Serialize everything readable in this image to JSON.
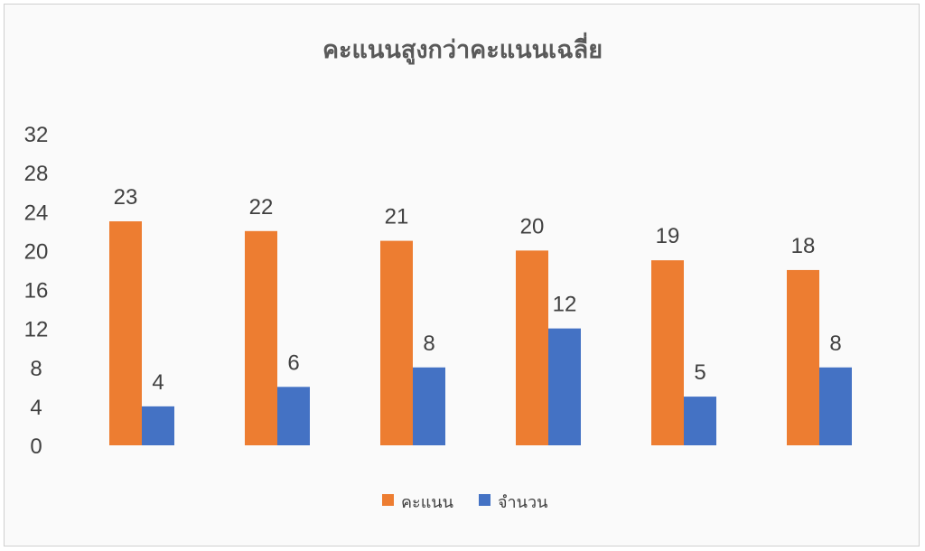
{
  "chart_data": {
    "type": "bar",
    "title": "คะแนนสูงกว่าคะแนนเฉลี่ย",
    "categories": [
      "",
      "",
      "",
      "",
      "",
      ""
    ],
    "series": [
      {
        "name": "คะแนน",
        "values": [
          23,
          22,
          21,
          20,
          19,
          18
        ],
        "color": "#ED7D31"
      },
      {
        "name": "จำนวน",
        "values": [
          4,
          6,
          8,
          12,
          5,
          8
        ],
        "color": "#4472C4"
      }
    ],
    "ylim": [
      0,
      32
    ],
    "yticks": [
      0,
      4,
      8,
      12,
      16,
      20,
      24,
      28,
      32
    ],
    "grid": false,
    "data_labels": true,
    "legend_position": "bottom"
  }
}
